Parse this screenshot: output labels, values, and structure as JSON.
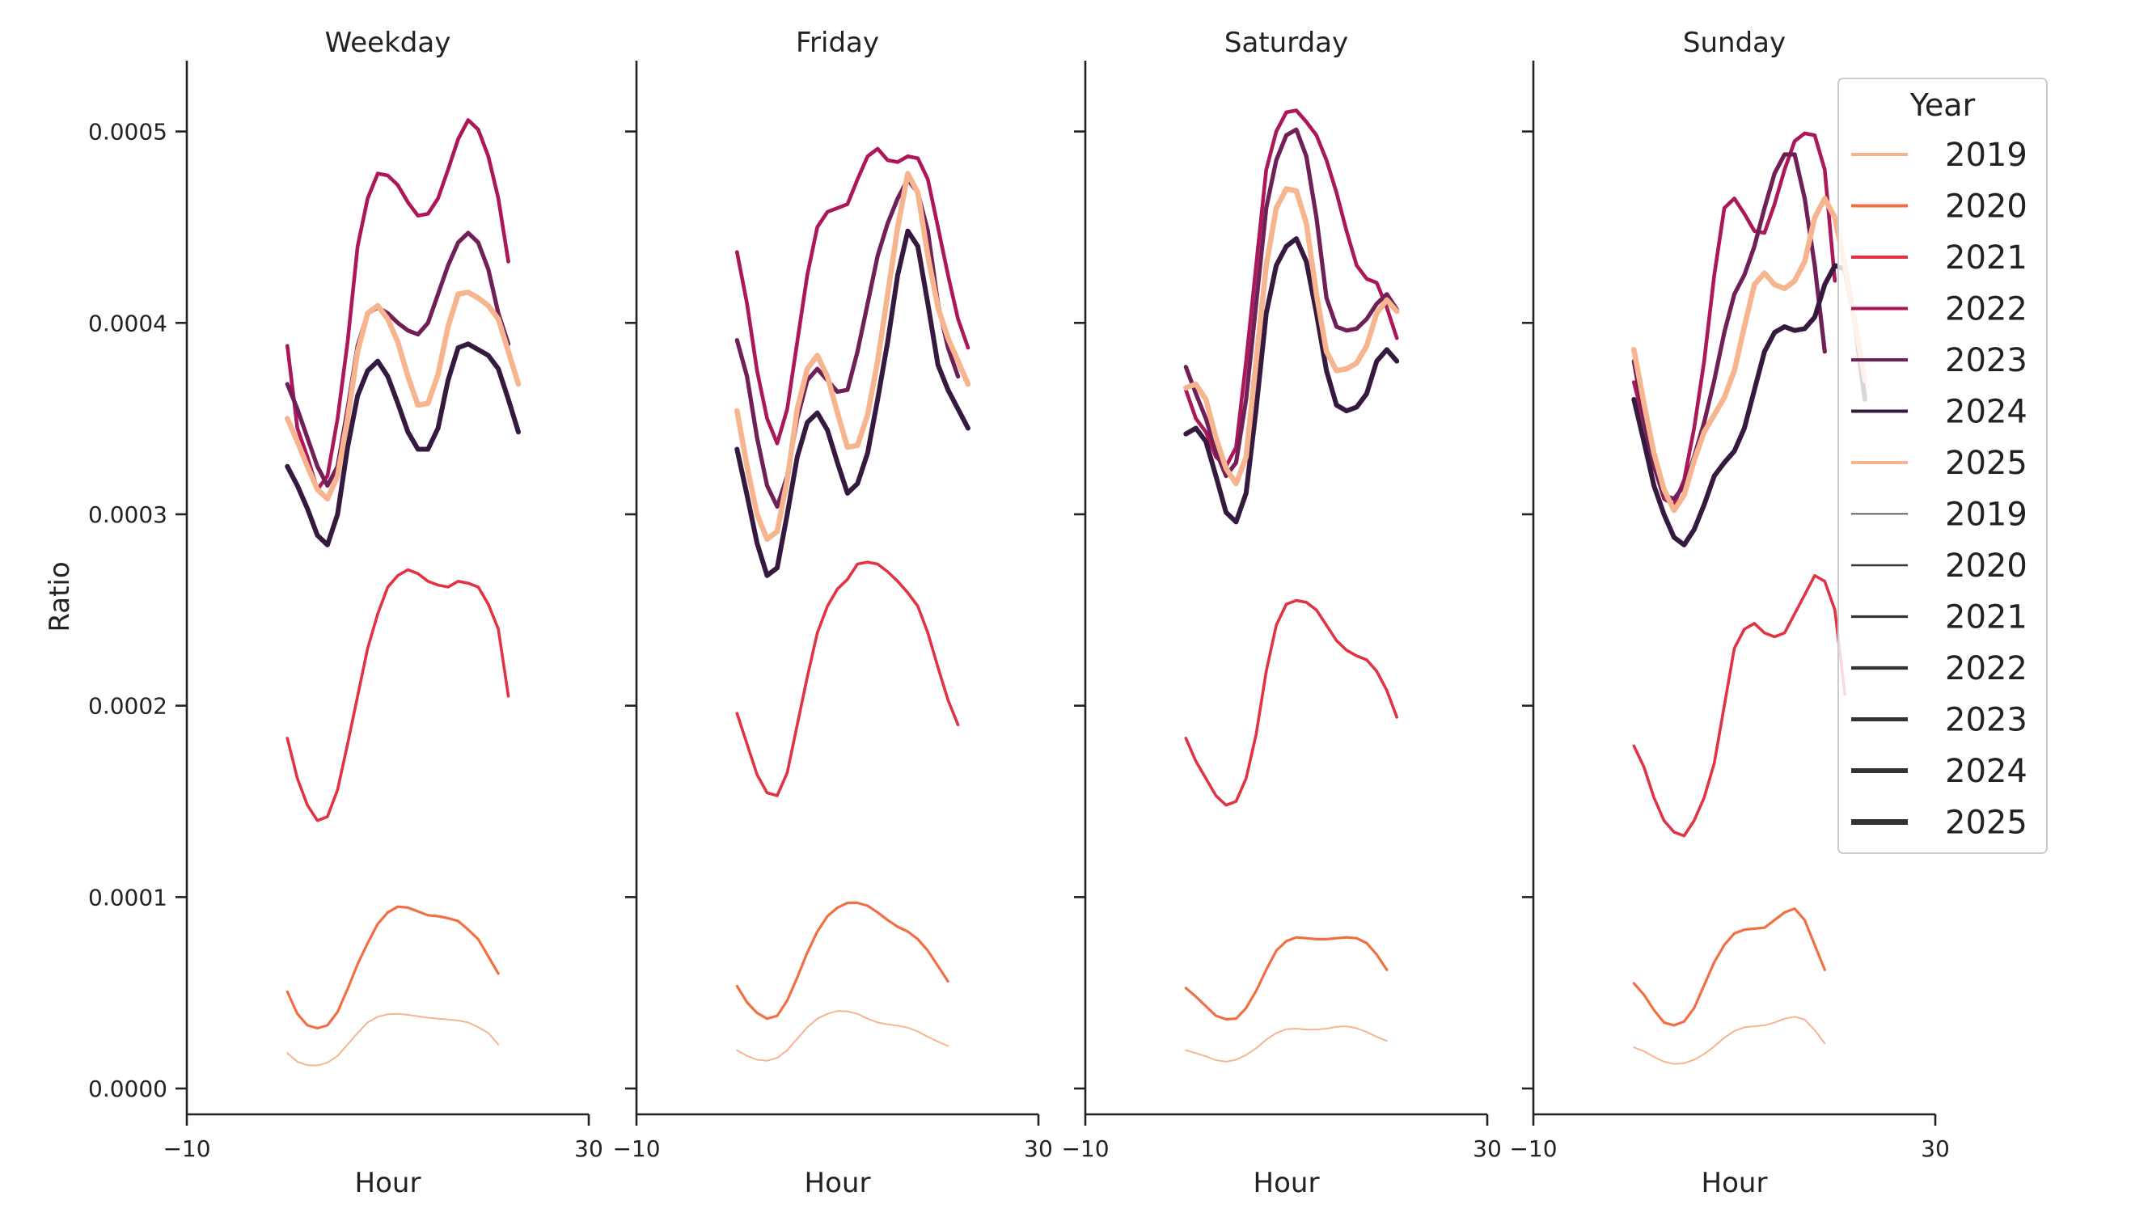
{
  "chart_data": {
    "type": "line",
    "ylabel": "Ratio",
    "xlabel": "Hour",
    "xlim": [
      -10,
      30
    ],
    "xticks": [
      "−10",
      "30"
    ],
    "ylim": [
      -1.35e-05,
      0.000537
    ],
    "yticks": [
      {
        "value": 0.0,
        "label": "0.0000"
      },
      {
        "value": 0.0001,
        "label": "0.0001"
      },
      {
        "value": 0.0002,
        "label": "0.0002"
      },
      {
        "value": 0.0003,
        "label": "0.0003"
      },
      {
        "value": 0.0004,
        "label": "0.0004"
      },
      {
        "value": 0.0005,
        "label": "0.0005"
      }
    ],
    "hours": [
      0,
      1,
      2,
      3,
      4,
      5,
      6,
      7,
      8,
      9,
      10,
      11,
      12,
      13,
      14,
      15,
      16,
      17,
      18,
      19,
      20,
      21,
      22,
      23
    ],
    "legend": {
      "title": "Year",
      "position": "upper-right",
      "hue_entries": [
        {
          "label": "2019",
          "color": "#f6b48f"
        },
        {
          "label": "2020",
          "color": "#f07043"
        },
        {
          "label": "2021",
          "color": "#e13342"
        },
        {
          "label": "2022",
          "color": "#ad1759"
        },
        {
          "label": "2023",
          "color": "#701f57"
        },
        {
          "label": "2024",
          "color": "#35193e"
        },
        {
          "label": "2025",
          "color": "#f6b48f"
        }
      ],
      "size_entries": [
        "2019",
        "2020",
        "2021",
        "2022",
        "2023",
        "2024",
        "2025"
      ]
    },
    "panels": [
      {
        "title": "Weekday",
        "series": [
          {
            "year": "2019",
            "values": [
              1.85e-05,
              1.4e-05,
              1.22e-05,
              1.2e-05,
              1.35e-05,
              1.7e-05,
              2.3e-05,
              2.9e-05,
              3.45e-05,
              3.75e-05,
              3.88e-05,
              3.9e-05,
              3.85e-05,
              3.77e-05,
              3.7e-05,
              3.65e-05,
              3.6e-05,
              3.55e-05,
              3.45e-05,
              3.2e-05,
              2.9e-05,
              2.3e-05
            ]
          },
          {
            "year": "2020",
            "values": [
              5.05e-05,
              3.9e-05,
              3.3e-05,
              3.15e-05,
              3.3e-05,
              4e-05,
              5.2e-05,
              6.5e-05,
              7.6e-05,
              8.6e-05,
              9.2e-05,
              9.5e-05,
              9.45e-05,
              9.25e-05,
              9.05e-05,
              9e-05,
              8.9e-05,
              8.75e-05,
              8.3e-05,
              7.8e-05,
              6.9e-05,
              6e-05
            ]
          },
          {
            "year": "2021",
            "values": [
              0.000183,
              0.000162,
              0.000148,
              0.00014,
              0.000142,
              0.000156,
              0.00018,
              0.000205,
              0.00023,
              0.000248,
              0.000262,
              0.000268,
              0.000271,
              0.000269,
              0.000265,
              0.000263,
              0.000262,
              0.000265,
              0.000264,
              0.000262,
              0.000253,
              0.00024,
              0.000205
            ]
          },
          {
            "year": "2022",
            "values": [
              0.000388,
              0.000345,
              0.00033,
              0.000313,
              0.00032,
              0.00035,
              0.00039,
              0.00044,
              0.000465,
              0.000478,
              0.000477,
              0.000472,
              0.000463,
              0.000456,
              0.000457,
              0.000465,
              0.00048,
              0.000496,
              0.000506,
              0.000501,
              0.000487,
              0.000465,
              0.000432
            ]
          },
          {
            "year": "2023",
            "values": [
              0.000368,
              0.000355,
              0.00034,
              0.000325,
              0.000315,
              0.000325,
              0.000355,
              0.000388,
              0.000405,
              0.000408,
              0.000405,
              0.0004,
              0.000396,
              0.000394,
              0.0004,
              0.000415,
              0.00043,
              0.000442,
              0.000447,
              0.000442,
              0.000428,
              0.000405,
              0.000389
            ]
          },
          {
            "year": "2024",
            "values": [
              0.000325,
              0.000315,
              0.000303,
              0.000289,
              0.000284,
              0.0003,
              0.000335,
              0.000362,
              0.000375,
              0.00038,
              0.000372,
              0.000358,
              0.000343,
              0.000334,
              0.000334,
              0.000345,
              0.00037,
              0.000387,
              0.000389,
              0.000386,
              0.000383,
              0.000376,
              0.00036,
              0.000343
            ]
          },
          {
            "year": "2025",
            "values": [
              0.00035,
              0.000338,
              0.000325,
              0.000313,
              0.000308,
              0.00032,
              0.00035,
              0.000385,
              0.000405,
              0.000409,
              0.000402,
              0.00039,
              0.000372,
              0.000357,
              0.000358,
              0.000373,
              0.000398,
              0.000415,
              0.000416,
              0.000413,
              0.000409,
              0.000402,
              0.000385,
              0.000368
            ]
          }
        ]
      },
      {
        "title": "Friday",
        "series": [
          {
            "year": "2019",
            "values": [
              2e-05,
              1.7e-05,
              1.5e-05,
              1.45e-05,
              1.6e-05,
              2e-05,
              2.6e-05,
              3.2e-05,
              3.65e-05,
              3.9e-05,
              4.05e-05,
              4.03e-05,
              3.9e-05,
              3.65e-05,
              3.45e-05,
              3.35e-05,
              3.28e-05,
              3.18e-05,
              2.98e-05,
              2.7e-05,
              2.45e-05,
              2.22e-05
            ]
          },
          {
            "year": "2020",
            "values": [
              5.35e-05,
              4.5e-05,
              3.95e-05,
              3.65e-05,
              3.8e-05,
              4.6e-05,
              5.8e-05,
              7.1e-05,
              8.2e-05,
              9e-05,
              9.45e-05,
              9.7e-05,
              9.7e-05,
              9.55e-05,
              9.2e-05,
              8.8e-05,
              8.45e-05,
              8.2e-05,
              7.8e-05,
              7.2e-05,
              6.4e-05,
              5.6e-05
            ]
          },
          {
            "year": "2021",
            "values": [
              0.000196,
              0.00018,
              0.000164,
              0.0001545,
              0.000153,
              0.000165,
              0.00019,
              0.000215,
              0.000238,
              0.000252,
              0.000261,
              0.000266,
              0.000274,
              0.000275,
              0.000274,
              0.00027,
              0.000265,
              0.000259,
              0.000252,
              0.000238,
              0.00022,
              0.000203,
              0.00019
            ]
          },
          {
            "year": "2022",
            "values": [
              0.000437,
              0.00041,
              0.000375,
              0.00035,
              0.000337,
              0.000355,
              0.00039,
              0.000425,
              0.00045,
              0.000458,
              0.00046,
              0.000462,
              0.000475,
              0.000487,
              0.000491,
              0.000485,
              0.000484,
              0.000487,
              0.000486,
              0.000475,
              0.00045,
              0.000425,
              0.000402,
              0.000387
            ]
          },
          {
            "year": "2023",
            "values": [
              0.000391,
              0.000372,
              0.00034,
              0.000315,
              0.000304,
              0.00032,
              0.00035,
              0.00037,
              0.000376,
              0.00037,
              0.000364,
              0.000365,
              0.000385,
              0.00041,
              0.000435,
              0.000452,
              0.000465,
              0.000475,
              0.000468,
              0.000448,
              0.00041,
              0.000387,
              0.000372
            ]
          },
          {
            "year": "2024",
            "values": [
              0.000334,
              0.00031,
              0.000285,
              0.000268,
              0.000272,
              0.0003,
              0.00033,
              0.000348,
              0.000353,
              0.000344,
              0.000327,
              0.000311,
              0.000316,
              0.000332,
              0.00036,
              0.00039,
              0.000425,
              0.000448,
              0.00044,
              0.00041,
              0.000378,
              0.000365,
              0.000355,
              0.000345
            ]
          },
          {
            "year": "2025",
            "values": [
              0.000354,
              0.000325,
              0.0003,
              0.000287,
              0.000291,
              0.000318,
              0.000355,
              0.000376,
              0.000383,
              0.000372,
              0.000353,
              0.000335,
              0.000336,
              0.000352,
              0.00038,
              0.000415,
              0.00045,
              0.000478,
              0.000468,
              0.000435,
              0.000408,
              0.000392,
              0.00038,
              0.000368
            ]
          }
        ]
      },
      {
        "title": "Saturday",
        "series": [
          {
            "year": "2019",
            "values": [
              2e-05,
              1.85e-05,
              1.68e-05,
              1.48e-05,
              1.4e-05,
              1.5e-05,
              1.75e-05,
              2.1e-05,
              2.55e-05,
              2.9e-05,
              3.1e-05,
              3.13e-05,
              3.08e-05,
              3.08e-05,
              3.13e-05,
              3.22e-05,
              3.25e-05,
              3.15e-05,
              2.95e-05,
              2.7e-05,
              2.48e-05
            ]
          },
          {
            "year": "2020",
            "values": [
              5.25e-05,
              4.8e-05,
              4.3e-05,
              3.8e-05,
              3.62e-05,
              3.65e-05,
              4.2e-05,
              5.1e-05,
              6.2e-05,
              7.2e-05,
              7.7e-05,
              7.9e-05,
              7.85e-05,
              7.8e-05,
              7.8e-05,
              7.85e-05,
              7.9e-05,
              7.85e-05,
              7.6e-05,
              7e-05,
              6.2e-05
            ]
          },
          {
            "year": "2021",
            "values": [
              0.000183,
              0.000171,
              0.000162,
              0.000153,
              0.000148,
              0.00015,
              0.000162,
              0.000185,
              0.000218,
              0.000242,
              0.000253,
              0.000255,
              0.000254,
              0.00025,
              0.000242,
              0.000234,
              0.000229,
              0.000226,
              0.000224,
              0.000218,
              0.000208,
              0.000194
            ]
          },
          {
            "year": "2022",
            "values": [
              0.000365,
              0.00035,
              0.000343,
              0.00033,
              0.000325,
              0.000335,
              0.00038,
              0.00043,
              0.00048,
              0.0005,
              0.00051,
              0.000511,
              0.000505,
              0.000498,
              0.000485,
              0.000468,
              0.000448,
              0.00043,
              0.000423,
              0.000421,
              0.000408,
              0.000392
            ]
          },
          {
            "year": "2023",
            "values": [
              0.000377,
              0.000363,
              0.00035,
              0.000333,
              0.00032,
              0.000327,
              0.00036,
              0.00041,
              0.00046,
              0.000485,
              0.000498,
              0.000501,
              0.000487,
              0.000455,
              0.000413,
              0.000398,
              0.000396,
              0.000397,
              0.000402,
              0.00041,
              0.000415,
              0.000407
            ]
          },
          {
            "year": "2024",
            "values": [
              0.000342,
              0.000345,
              0.000338,
              0.00032,
              0.000301,
              0.000296,
              0.000311,
              0.000355,
              0.000405,
              0.00043,
              0.00044,
              0.000444,
              0.000432,
              0.000405,
              0.000375,
              0.000357,
              0.000354,
              0.000356,
              0.000363,
              0.00038,
              0.000386,
              0.00038
            ]
          },
          {
            "year": "2025",
            "values": [
              0.000366,
              0.000368,
              0.00036,
              0.00034,
              0.000324,
              0.000316,
              0.00033,
              0.00038,
              0.00043,
              0.00046,
              0.00047,
              0.000469,
              0.000452,
              0.000415,
              0.000385,
              0.000375,
              0.000376,
              0.000379,
              0.000388,
              0.000405,
              0.000412,
              0.000406
            ]
          }
        ]
      },
      {
        "title": "Sunday",
        "series": [
          {
            "year": "2019",
            "values": [
              2.15e-05,
              1.95e-05,
              1.65e-05,
              1.4e-05,
              1.28e-05,
              1.32e-05,
              1.5e-05,
              1.8e-05,
              2.2e-05,
              2.65e-05,
              3e-05,
              3.2e-05,
              3.25e-05,
              3.3e-05,
              3.45e-05,
              3.65e-05,
              3.75e-05,
              3.6e-05,
              3.05e-05,
              2.35e-05
            ]
          },
          {
            "year": "2020",
            "values": [
              5.5e-05,
              4.9e-05,
              4.1e-05,
              3.45e-05,
              3.3e-05,
              3.5e-05,
              4.2e-05,
              5.4e-05,
              6.6e-05,
              7.5e-05,
              8.1e-05,
              8.3e-05,
              8.35e-05,
              8.4e-05,
              8.8e-05,
              9.2e-05,
              9.4e-05,
              8.8e-05,
              7.5e-05,
              6.2e-05
            ]
          },
          {
            "year": "2021",
            "values": [
              0.000179,
              0.000168,
              0.000152,
              0.00014,
              0.000134,
              0.000132,
              0.00014,
              0.000152,
              0.00017,
              0.0002,
              0.00023,
              0.00024,
              0.000243,
              0.000238,
              0.000236,
              0.000238,
              0.000248,
              0.000258,
              0.000268,
              0.000265,
              0.00025,
              0.000206
            ]
          },
          {
            "year": "2022",
            "values": [
              0.000369,
              0.000348,
              0.000325,
              0.000308,
              0.000305,
              0.000318,
              0.000345,
              0.00038,
              0.000425,
              0.00046,
              0.000465,
              0.000457,
              0.000448,
              0.000447,
              0.000462,
              0.00048,
              0.000495,
              0.000499,
              0.000498,
              0.00048,
              0.000422
            ]
          },
          {
            "year": "2023",
            "values": [
              0.00038,
              0.00035,
              0.000325,
              0.00031,
              0.000308,
              0.000315,
              0.00033,
              0.000348,
              0.00037,
              0.000395,
              0.000415,
              0.000425,
              0.00044,
              0.00046,
              0.000478,
              0.000488,
              0.000488,
              0.000465,
              0.00043,
              0.000385
            ]
          },
          {
            "year": "2024",
            "values": [
              0.00036,
              0.000338,
              0.000315,
              0.0003,
              0.000288,
              0.000284,
              0.000292,
              0.000305,
              0.00032,
              0.000327,
              0.000333,
              0.000345,
              0.000365,
              0.000385,
              0.000395,
              0.000398,
              0.000396,
              0.000397,
              0.000403,
              0.00042,
              0.00043,
              0.000428,
              0.0004,
              0.00036
            ]
          },
          {
            "year": "2025",
            "values": [
              0.000386,
              0.000358,
              0.000332,
              0.000313,
              0.000302,
              0.00031,
              0.000328,
              0.000343,
              0.000352,
              0.000361,
              0.000375,
              0.000398,
              0.00042,
              0.000426,
              0.00042,
              0.000418,
              0.000422,
              0.000432,
              0.000455,
              0.000465,
              0.000455,
              0.00043,
              0.0004,
              0.00037
            ]
          }
        ]
      }
    ]
  }
}
